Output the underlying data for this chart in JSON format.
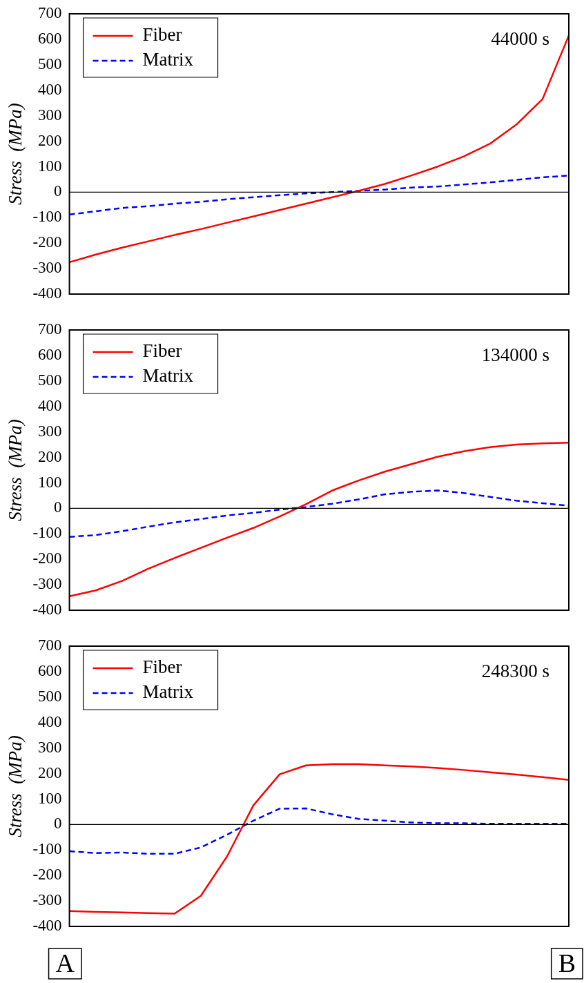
{
  "chart_data": [
    {
      "type": "line",
      "ylabel": "Stress  (MPa)",
      "categories": [
        null,
        null,
        null,
        null,
        null,
        null,
        null,
        null,
        null,
        null,
        null,
        null,
        null,
        null,
        null,
        null,
        null,
        null,
        null,
        null
      ],
      "ylim": [
        -400,
        700
      ],
      "yticks": [
        -400,
        -300,
        -200,
        -100,
        0,
        100,
        200,
        300,
        400,
        500,
        600,
        700
      ],
      "tick_labels": "y",
      "grid": false,
      "legend": "top left",
      "marker": "none",
      "annotations": [
        "44000 s"
      ],
      "ref_lines": [
        {
          "axis": "y",
          "value": 0,
          "color": "#000000"
        }
      ],
      "series": [
        {
          "name": "Fiber",
          "color": "#ff0000",
          "line_style": "solid",
          "values": [
            -275,
            -245,
            -218,
            -193,
            -168,
            -145,
            -120,
            -95,
            -70,
            -45,
            -20,
            5,
            32,
            65,
            100,
            140,
            190,
            265,
            365,
            615
          ]
        },
        {
          "name": "Matrix",
          "color": "#0000ff",
          "line_style": "dashed",
          "values": [
            -88,
            -75,
            -62,
            -55,
            -45,
            -38,
            -28,
            -20,
            -12,
            -5,
            0,
            5,
            10,
            18,
            22,
            30,
            38,
            48,
            58,
            65
          ]
        }
      ]
    },
    {
      "type": "line",
      "ylabel": "Stress  (MPa)",
      "categories": [
        null,
        null,
        null,
        null,
        null,
        null,
        null,
        null,
        null,
        null,
        null,
        null,
        null,
        null,
        null,
        null,
        null,
        null,
        null,
        null
      ],
      "ylim": [
        -400,
        700
      ],
      "yticks": [
        -400,
        -300,
        -200,
        -100,
        0,
        100,
        200,
        300,
        400,
        500,
        600,
        700
      ],
      "tick_labels": "y",
      "grid": false,
      "legend": "top left",
      "marker": "none",
      "annotations": [
        "134000 s"
      ],
      "ref_lines": [
        {
          "axis": "y",
          "value": 0,
          "color": "#000000"
        }
      ],
      "series": [
        {
          "name": "Fiber",
          "color": "#ff0000",
          "line_style": "solid",
          "values": [
            -345,
            -322,
            -285,
            -237,
            -195,
            -155,
            -115,
            -77,
            -32,
            16,
            70,
            109,
            144,
            173,
            202,
            224,
            240,
            250,
            255,
            258
          ]
        },
        {
          "name": "Matrix",
          "color": "#0000ff",
          "line_style": "dashed",
          "values": [
            -112,
            -105,
            -90,
            -72,
            -55,
            -42,
            -28,
            -18,
            -5,
            5,
            18,
            35,
            55,
            65,
            70,
            60,
            45,
            30,
            20,
            10
          ]
        }
      ]
    },
    {
      "type": "line",
      "ylabel": "Stress  (MPa)",
      "categories": [
        null,
        null,
        null,
        null,
        null,
        null,
        null,
        null,
        null,
        null,
        null,
        null,
        null,
        null,
        null,
        null,
        null,
        null,
        null,
        null
      ],
      "ylim": [
        -400,
        700
      ],
      "yticks": [
        -400,
        -300,
        -200,
        -100,
        0,
        100,
        200,
        300,
        400,
        500,
        600,
        700
      ],
      "tick_labels": "y",
      "grid": false,
      "legend": "top left",
      "marker": "none",
      "annotations": [
        "248300 s",
        "A",
        "B"
      ],
      "ref_lines": [
        {
          "axis": "y",
          "value": 0,
          "color": "#000000"
        }
      ],
      "series": [
        {
          "name": "Fiber",
          "color": "#ff0000",
          "line_style": "solid",
          "values": [
            -340,
            -343,
            -345,
            -348,
            -350,
            -280,
            -125,
            75,
            197,
            232,
            237,
            237,
            232,
            228,
            222,
            214,
            205,
            196,
            186,
            175
          ]
        },
        {
          "name": "Matrix",
          "color": "#0000ff",
          "line_style": "dashed",
          "values": [
            -105,
            -112,
            -110,
            -115,
            -115,
            -90,
            -40,
            15,
            62,
            63,
            40,
            22,
            15,
            8,
            5,
            5,
            3,
            3,
            3,
            3
          ]
        }
      ]
    }
  ]
}
